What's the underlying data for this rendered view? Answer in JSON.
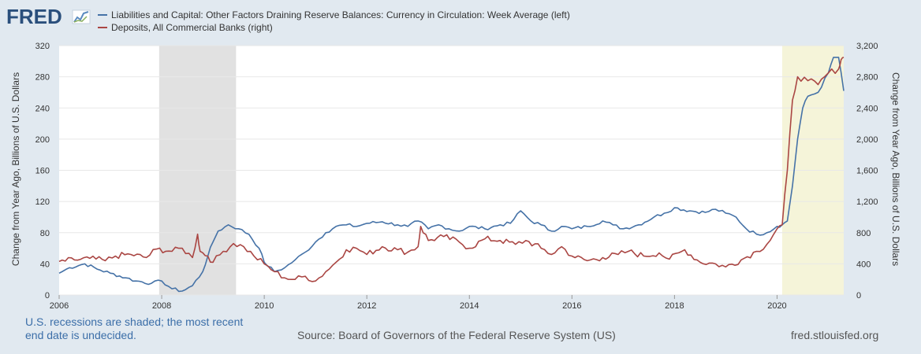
{
  "brand": {
    "logo": "FRED"
  },
  "colors": {
    "series1": "#4572a7",
    "series2": "#aa4643",
    "recession": "#e1e1e1",
    "undecided": "#f5f4d9",
    "plotBg": "#ffffff",
    "grid": "#e8e8e8",
    "pageBg": "#e1e9f0"
  },
  "footer": {
    "note": "U.S. recessions are shaded; the most recent end date is undecided.",
    "source": "Source: Board of Governors of the Federal Reserve System (US)",
    "url": "fred.stlouisfed.org"
  },
  "chart_data": {
    "type": "line",
    "title": "",
    "xlabel": "",
    "ylabel": "Change from Year Ago, Billions of U.S. Dollars",
    "y2label": "Change from Year Ago, Billions of U.S. Dollars",
    "xlim": [
      2006,
      2021.3
    ],
    "ylim": [
      0,
      320
    ],
    "y2lim": [
      0,
      3200
    ],
    "x_ticks": [
      "2006",
      "2008",
      "2010",
      "2012",
      "2014",
      "2016",
      "2018",
      "2020"
    ],
    "y_ticks": [
      "0",
      "40",
      "80",
      "120",
      "160",
      "200",
      "240",
      "280",
      "320"
    ],
    "y2_ticks": [
      "0",
      "400",
      "800",
      "1,200",
      "1,600",
      "2,000",
      "2,400",
      "2,800",
      "3,200"
    ],
    "recessions": [
      {
        "start": 2007.95,
        "end": 2009.45,
        "kind": "recession"
      },
      {
        "start": 2020.1,
        "end": 2021.3,
        "kind": "undecided"
      }
    ],
    "series": [
      {
        "name": "Liabilities and Capital: Other Factors Draining Reserve Balances: Currency in Circulation: Week Average (left)",
        "axis": "left",
        "x": [
          2006.0,
          2006.2,
          2006.5,
          2006.8,
          2007.0,
          2007.3,
          2007.5,
          2007.8,
          2008.0,
          2008.2,
          2008.4,
          2008.6,
          2008.8,
          2008.9,
          2009.0,
          2009.1,
          2009.3,
          2009.5,
          2009.7,
          2009.9,
          2010.0,
          2010.2,
          2010.4,
          2010.6,
          2010.8,
          2011.0,
          2011.2,
          2011.4,
          2011.6,
          2011.8,
          2012.0,
          2012.3,
          2012.6,
          2012.8,
          2013.0,
          2013.2,
          2013.4,
          2013.6,
          2013.8,
          2014.0,
          2014.3,
          2014.6,
          2014.8,
          2015.0,
          2015.2,
          2015.4,
          2015.6,
          2015.8,
          2016.0,
          2016.3,
          2016.6,
          2016.8,
          2017.0,
          2017.3,
          2017.6,
          2017.8,
          2018.0,
          2018.3,
          2018.6,
          2018.8,
          2019.0,
          2019.2,
          2019.4,
          2019.6,
          2019.8,
          2020.0,
          2020.1,
          2020.2,
          2020.3,
          2020.4,
          2020.5,
          2020.6,
          2020.8,
          2021.0,
          2021.1,
          2021.2,
          2021.3
        ],
        "values": [
          28,
          35,
          40,
          32,
          28,
          22,
          18,
          15,
          18,
          8,
          5,
          12,
          30,
          50,
          68,
          82,
          90,
          85,
          78,
          60,
          42,
          30,
          35,
          45,
          55,
          68,
          80,
          88,
          90,
          88,
          92,
          94,
          90,
          88,
          95,
          85,
          90,
          85,
          82,
          88,
          85,
          90,
          92,
          108,
          95,
          90,
          82,
          88,
          85,
          88,
          95,
          90,
          85,
          90,
          100,
          105,
          112,
          108,
          106,
          110,
          105,
          100,
          85,
          78,
          80,
          88,
          90,
          95,
          140,
          200,
          240,
          255,
          260,
          285,
          305,
          305,
          262
        ]
      },
      {
        "name": "Deposits, All Commercial Banks (right)",
        "axis": "right",
        "x": [
          2006.0,
          2006.3,
          2006.6,
          2006.9,
          2007.1,
          2007.4,
          2007.7,
          2007.9,
          2008.2,
          2008.4,
          2008.6,
          2008.7,
          2008.75,
          2008.9,
          2009.0,
          2009.2,
          2009.4,
          2009.6,
          2009.8,
          2010.0,
          2010.2,
          2010.4,
          2010.6,
          2010.8,
          2011.0,
          2011.2,
          2011.4,
          2011.6,
          2011.8,
          2012.0,
          2012.3,
          2012.6,
          2012.8,
          2013.0,
          2013.05,
          2013.2,
          2013.5,
          2013.8,
          2014.0,
          2014.3,
          2014.6,
          2014.9,
          2015.1,
          2015.4,
          2015.6,
          2015.8,
          2016.0,
          2016.3,
          2016.6,
          2016.9,
          2017.1,
          2017.4,
          2017.7,
          2017.9,
          2018.2,
          2018.5,
          2018.8,
          2019.0,
          2019.3,
          2019.6,
          2019.8,
          2020.0,
          2020.1,
          2020.2,
          2020.3,
          2020.4,
          2020.6,
          2020.8,
          2021.0,
          2021.2,
          2021.25,
          2021.3
        ],
        "values": [
          430,
          450,
          470,
          440,
          500,
          520,
          480,
          590,
          560,
          600,
          480,
          780,
          560,
          500,
          420,
          560,
          660,
          620,
          500,
          400,
          300,
          220,
          200,
          240,
          180,
          300,
          420,
          580,
          600,
          520,
          620,
          580,
          550,
          620,
          880,
          700,
          750,
          680,
          600,
          720,
          700,
          650,
          700,
          600,
          520,
          620,
          500,
          440,
          480,
          520,
          560,
          500,
          540,
          460,
          580,
          420,
          400,
          360,
          450,
          560,
          650,
          850,
          900,
          1600,
          2500,
          2800,
          2750,
          2700,
          2850,
          2900,
          3020,
          3050
        ]
      }
    ]
  }
}
